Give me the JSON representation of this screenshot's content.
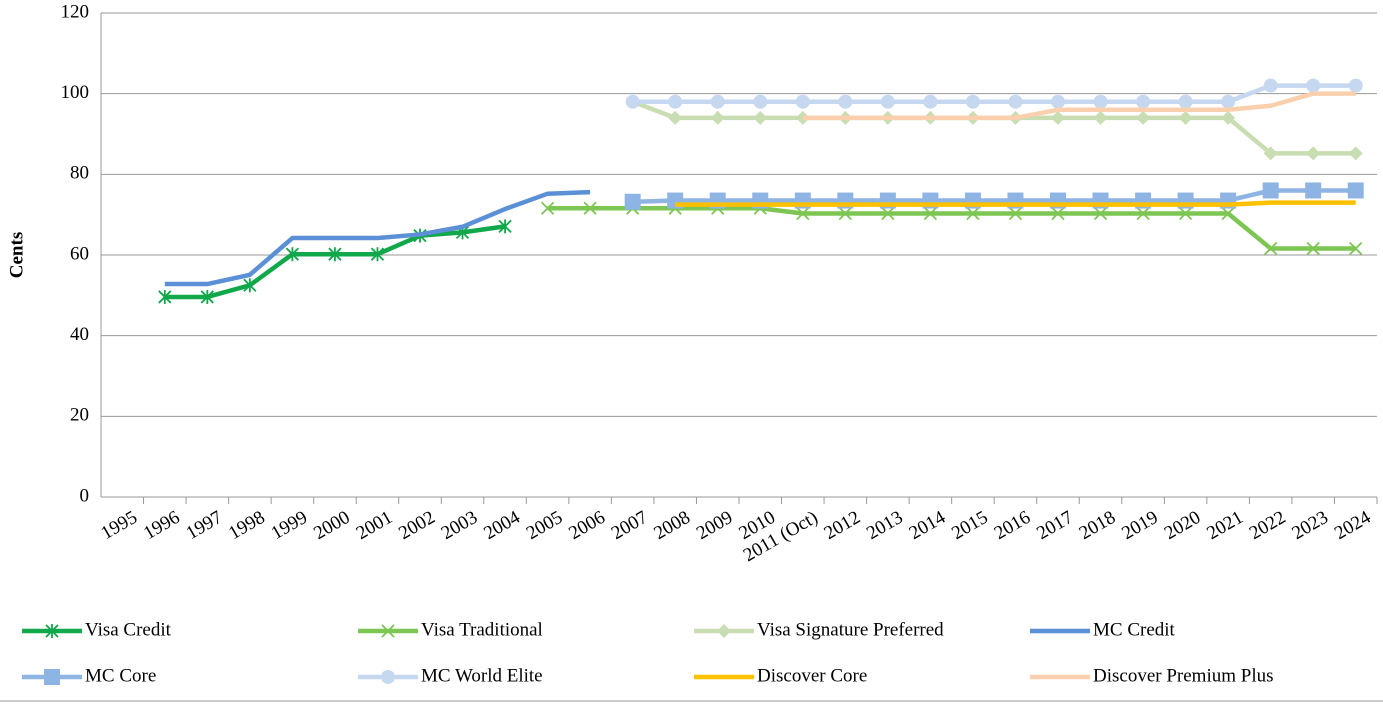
{
  "chart_data": {
    "type": "line",
    "y_label": "Cents",
    "categories": [
      "1995",
      "1996",
      "1997",
      "1998",
      "1999",
      "2000",
      "2001",
      "2002",
      "2003",
      "2004",
      "2005",
      "2006",
      "2007",
      "2008",
      "2009",
      "2010",
      "2011 (Oct)",
      "2012",
      "2013",
      "2014",
      "2015",
      "2016",
      "2017",
      "2018",
      "2019",
      "2020",
      "2021",
      "2022",
      "2023",
      "2024"
    ],
    "ylim": [
      0,
      120
    ],
    "yticks": [
      0,
      20,
      40,
      60,
      80,
      100,
      120
    ],
    "grid": true,
    "legend": "bottom",
    "series": [
      {
        "name": "Visa Credit",
        "color": "#10a84a",
        "marker": "asterisk",
        "values": [
          null,
          49.6,
          49.6,
          52.5,
          60.2,
          60.2,
          60.2,
          64.8,
          65.6,
          67.1,
          null,
          null,
          null,
          null,
          null,
          null,
          null,
          null,
          null,
          null,
          null,
          null,
          null,
          null,
          null,
          null,
          null,
          null,
          null,
          null
        ]
      },
      {
        "name": "Visa Traditional",
        "color": "#7dc653",
        "marker": "x",
        "values": [
          null,
          null,
          null,
          null,
          null,
          null,
          null,
          null,
          null,
          null,
          71.6,
          71.6,
          71.6,
          71.6,
          71.6,
          71.6,
          70.3,
          70.3,
          70.3,
          70.3,
          70.3,
          70.3,
          70.3,
          70.3,
          70.3,
          70.3,
          70.3,
          61.6,
          61.6,
          61.6
        ]
      },
      {
        "name": "Visa Signature Preferred",
        "color": "#c9ddb2",
        "marker": "diamond",
        "values": [
          null,
          null,
          null,
          null,
          null,
          null,
          null,
          null,
          null,
          null,
          null,
          null,
          98,
          94,
          94,
          94,
          94,
          94,
          94,
          94,
          94,
          94,
          94,
          94,
          94,
          94,
          94,
          85.2,
          85.2,
          85.2
        ]
      },
      {
        "name": "MC Credit",
        "color": "#5b8fd6",
        "marker": "none",
        "values": [
          null,
          52.8,
          52.8,
          55.1,
          64.2,
          64.2,
          64.2,
          65.1,
          67.0,
          71.4,
          75.2,
          75.6,
          null,
          null,
          null,
          null,
          null,
          null,
          null,
          null,
          null,
          null,
          null,
          null,
          null,
          null,
          null,
          null,
          null,
          null
        ]
      },
      {
        "name": "MC Core",
        "color": "#8eb4e3",
        "marker": "square",
        "values": [
          null,
          null,
          null,
          null,
          null,
          null,
          null,
          null,
          null,
          null,
          null,
          null,
          73.2,
          73.5,
          73.5,
          73.5,
          73.5,
          73.5,
          73.5,
          73.5,
          73.5,
          73.5,
          73.5,
          73.5,
          73.5,
          73.5,
          73.5,
          76,
          76,
          76
        ]
      },
      {
        "name": "MC World Elite",
        "color": "#c6d8ef",
        "marker": "circle",
        "values": [
          null,
          null,
          null,
          null,
          null,
          null,
          null,
          null,
          null,
          null,
          null,
          null,
          98,
          98,
          98,
          98,
          98,
          98,
          98,
          98,
          98,
          98,
          98,
          98,
          98,
          98,
          98,
          102,
          102,
          102
        ]
      },
      {
        "name": "Discover Core",
        "color": "#ffc000",
        "marker": "none",
        "values": [
          null,
          null,
          null,
          null,
          null,
          null,
          null,
          null,
          null,
          null,
          null,
          null,
          null,
          72.5,
          72.5,
          72.5,
          72.5,
          72.5,
          72.5,
          72.5,
          72.5,
          72.5,
          72.5,
          72.5,
          72.5,
          72.5,
          72.5,
          73,
          73,
          73
        ]
      },
      {
        "name": "Discover Premium Plus",
        "color": "#f9cfae",
        "marker": "none",
        "values": [
          null,
          null,
          null,
          null,
          null,
          null,
          null,
          null,
          null,
          null,
          null,
          null,
          null,
          null,
          null,
          null,
          94,
          94,
          94,
          94,
          94,
          94,
          96,
          96,
          96,
          96,
          96,
          97,
          100,
          100
        ]
      }
    ]
  }
}
